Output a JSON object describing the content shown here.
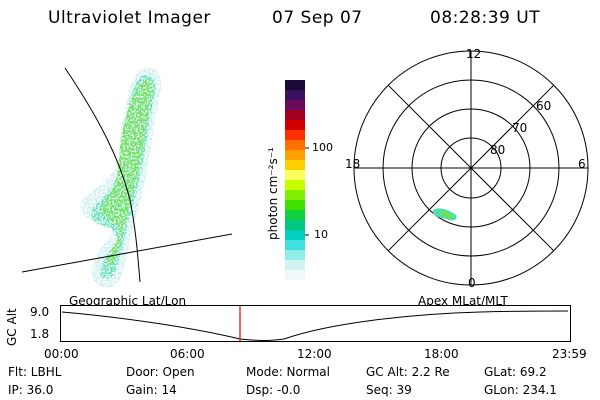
{
  "header": {
    "title": "Ultraviolet Imager",
    "date": "07 Sep 07",
    "time": "08:28:39 UT"
  },
  "geo_panel": {
    "label": "Geographic Lat/Lon"
  },
  "colorbar": {
    "label": "photon cm⁻²s⁻¹",
    "ticks": [
      "100",
      "10"
    ],
    "colors": [
      "#1a0a3a",
      "#3a1060",
      "#6a0a5a",
      "#a0001e",
      "#d00000",
      "#ff3000",
      "#ff7000",
      "#ffa000",
      "#ffd000",
      "#ffff60",
      "#c8ff00",
      "#80f000",
      "#40e000",
      "#10d040",
      "#00c880",
      "#00d0c0",
      "#40e0e0",
      "#90eee8",
      "#d0f4f0",
      "#f0f8f8"
    ]
  },
  "polar_panel": {
    "label": "Apex  MLat/MLT",
    "mlt_labels": {
      "top": "12",
      "left": "18",
      "right": "6",
      "bottom": "0"
    },
    "lat_labels": [
      "60",
      "70",
      "80"
    ]
  },
  "timeline": {
    "axis_label": "GC Alt",
    "y_ticks": [
      "9.0",
      "1.8"
    ],
    "x_ticks": [
      "00:00",
      "06:00",
      "12:00",
      "18:00",
      "23:59"
    ],
    "current_time_marker_color": "#e00000"
  },
  "info": {
    "row1": [
      "Flt: LBHL",
      "Door: Open",
      "Mode: Normal",
      "GC Alt: 2.2 Re",
      "GLat:  69.2"
    ],
    "row2": [
      "IP: 36.0",
      "Gain: 14",
      "Dsp:   -0.0",
      "Seq: 39",
      "GLon: 234.1"
    ]
  }
}
